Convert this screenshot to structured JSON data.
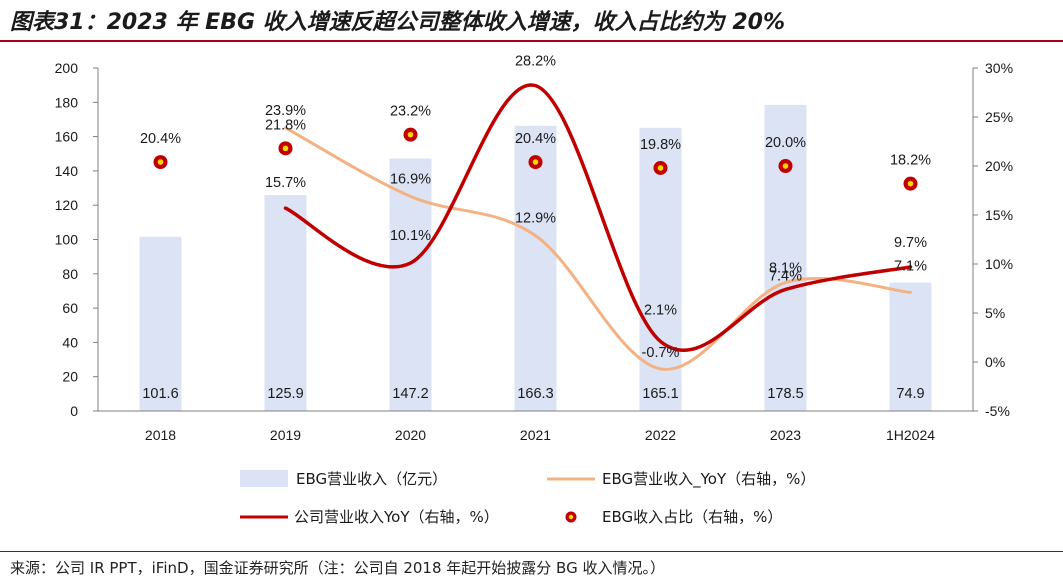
{
  "header": {
    "title": "图表31：2023 年 EBG 收入增速反超公司整体收入增速，收入占比约为 20%"
  },
  "footer": {
    "source": "来源：公司 IR PPT，iFinD，国金证券研究所（注：公司自 2018 年起开始披露分 BG 收入情况。）"
  },
  "colors": {
    "bar": "#dbe3f4",
    "ebg_yoy_line": "#f4b183",
    "company_yoy_line": "#c00000",
    "share_dot_fill": "#c00000",
    "share_dot_core": "#ffd700",
    "accent_rule": "#a5001e"
  },
  "chart_data": {
    "type": "bar",
    "categories": [
      "2018",
      "2019",
      "2020",
      "2021",
      "2022",
      "2023",
      "1H2024"
    ],
    "ylim": [
      0,
      200
    ],
    "y_ticks": [
      "0",
      "20",
      "40",
      "60",
      "80",
      "100",
      "120",
      "140",
      "160",
      "180",
      "200"
    ],
    "y2lim": [
      -5,
      30
    ],
    "y2_ticks": [
      "-5%",
      "0%",
      "5%",
      "10%",
      "15%",
      "20%",
      "25%",
      "30%"
    ],
    "legend_position": "bottom",
    "series": [
      {
        "name": "EBG营业收入（亿元）",
        "type": "bar",
        "axis": "left",
        "values": [
          101.6,
          125.9,
          147.2,
          166.3,
          165.1,
          178.5,
          74.9
        ],
        "labels": [
          "101.6",
          "125.9",
          "147.2",
          "166.3",
          "165.1",
          "178.5",
          "74.9"
        ]
      },
      {
        "name": "EBG营业收入_YoY（右轴，%）",
        "type": "line",
        "axis": "right",
        "values": [
          null,
          23.9,
          16.9,
          12.9,
          -0.7,
          8.1,
          7.1
        ],
        "labels": [
          "",
          "23.9%",
          "16.9%",
          "12.9%",
          "-0.7%",
          "8.1%",
          "7.1%"
        ]
      },
      {
        "name": "公司营业收入YoY（右轴，%）",
        "type": "line",
        "axis": "right",
        "values": [
          null,
          15.7,
          10.1,
          28.2,
          2.1,
          7.4,
          9.7
        ],
        "labels": [
          "",
          "15.7%",
          "10.1%",
          "28.2%",
          "2.1%",
          "7.4%",
          "9.7%"
        ]
      },
      {
        "name": "EBG收入占比（右轴，%）",
        "type": "scatter",
        "axis": "right",
        "values": [
          20.4,
          21.8,
          23.2,
          20.4,
          19.8,
          20.0,
          18.2
        ],
        "labels": [
          "20.4%",
          "21.8%",
          "23.2%",
          "20.4%",
          "19.8%",
          "20.0%",
          "18.2%"
        ]
      }
    ]
  }
}
